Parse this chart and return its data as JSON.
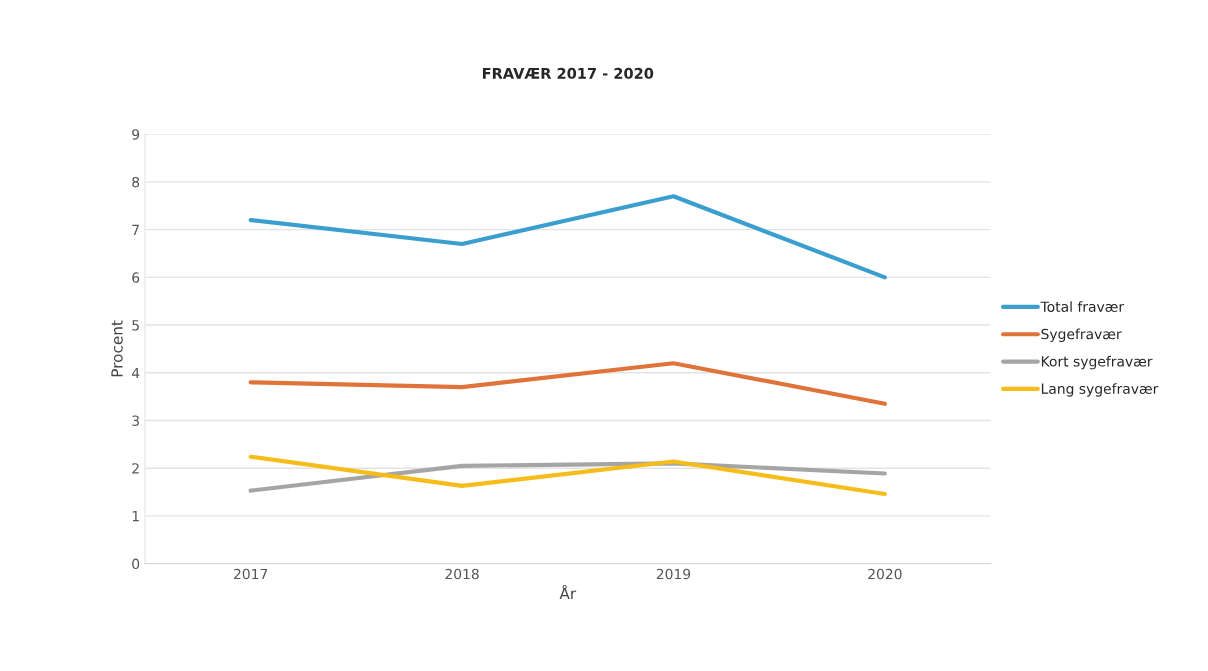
{
  "chart_data": {
    "type": "line",
    "title": "FRAVÆR 2017 - 2020",
    "xlabel": "År",
    "ylabel": "Procent",
    "categories": [
      "2017",
      "2018",
      "2019",
      "2020"
    ],
    "series": [
      {
        "name": "Total fravær",
        "color": "#3a9fcf",
        "values": [
          7.2,
          6.7,
          7.7,
          6.0
        ]
      },
      {
        "name": "Sygefravær",
        "color": "#e0733a",
        "values": [
          3.8,
          3.7,
          4.2,
          3.35
        ]
      },
      {
        "name": "Kort sygefravær",
        "color": "#a5a5a5",
        "values": [
          1.53,
          2.05,
          2.1,
          1.89
        ]
      },
      {
        "name": "Lang sygefravær",
        "color": "#f5bc1a",
        "values": [
          2.24,
          1.63,
          2.14,
          1.46
        ]
      }
    ],
    "ylim": [
      0,
      9
    ],
    "yticks": [
      0,
      1,
      2,
      3,
      4,
      5,
      6,
      7,
      8,
      9
    ],
    "grid": "y",
    "legend": "right",
    "marker": "none",
    "line_style": "solid"
  }
}
